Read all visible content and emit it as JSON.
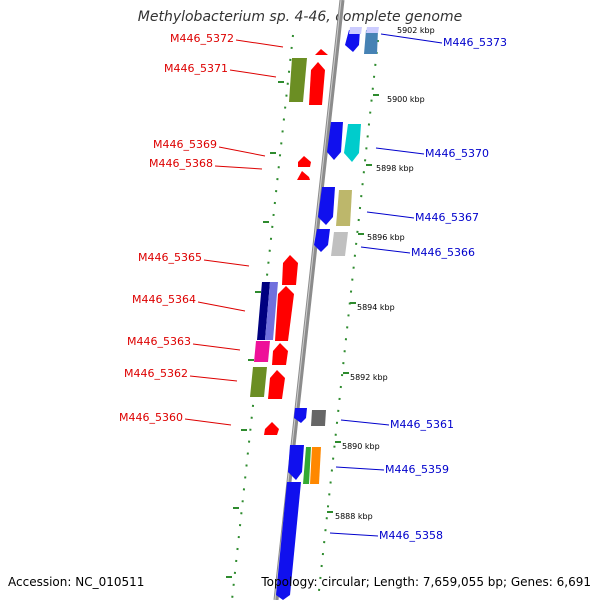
{
  "title": "Methylobacterium sp. 4-46, complete genome",
  "accession": "Accession: NC_010511",
  "topology": "Topology: circular; Length: 7,659,055 bp; Genes: 6,691",
  "colors": {
    "backbone": "#8c8c8c",
    "tick_dots": "#2e8b2e",
    "reverse_label": "#dd0000",
    "forward_label": "#0000cc",
    "red": "#ff0000",
    "blue": "#1010ee",
    "olive": "#6b8e23",
    "cyan": "#00cccc",
    "khaki": "#bdb76b",
    "light_gray": "#c0c0c0",
    "navy": "#000080",
    "slate": "#7070dd",
    "magenta": "#ee1199",
    "dark_gray": "#666666",
    "lime": "#33aa33",
    "orange": "#ff8800",
    "steel": "#4682b4",
    "lavender": "#ccccff"
  },
  "scale_labels": [
    "5902 kbp",
    "5900 kbp",
    "5898 kbp",
    "5896 kbp",
    "5894 kbp",
    "5892 kbp",
    "5890 kbp",
    "5888 kbp"
  ],
  "genes_left": [
    {
      "label": "M446_5372"
    },
    {
      "label": "M446_5371"
    },
    {
      "label": "M446_5369"
    },
    {
      "label": "M446_5368"
    },
    {
      "label": "M446_5365"
    },
    {
      "label": "M446_5364"
    },
    {
      "label": "M446_5363"
    },
    {
      "label": "M446_5362"
    },
    {
      "label": "M446_5360"
    }
  ],
  "genes_right": [
    {
      "label": "M446_5373"
    },
    {
      "label": "M446_5370"
    },
    {
      "label": "M446_5367"
    },
    {
      "label": "M446_5366"
    },
    {
      "label": "M446_5361"
    },
    {
      "label": "M446_5359"
    },
    {
      "label": "M446_5358"
    }
  ]
}
